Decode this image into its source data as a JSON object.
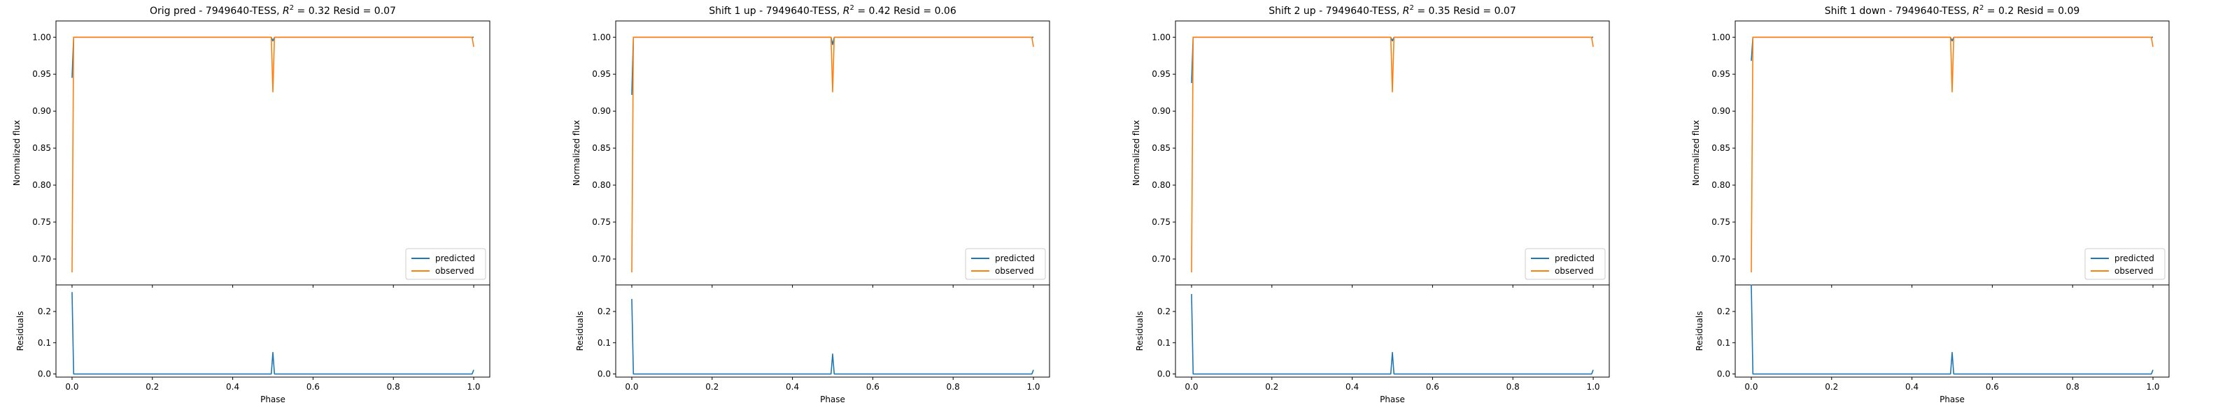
{
  "chart_data": [
    {
      "type": "line",
      "title_text": "Orig pred - 7949640-TESS, ",
      "r2": "0.32",
      "resid_text": " Resid = 0.07",
      "ylabel": "Normalized flux",
      "ylabel_res": "Residuals",
      "xlabel": "Phase",
      "xlim": [
        -0.04,
        1.04
      ],
      "ylim": [
        0.665,
        1.022
      ],
      "ylim_res": [
        -0.01,
        0.285
      ],
      "yticks": [
        "0.70",
        "0.75",
        "0.80",
        "0.85",
        "0.90",
        "0.95",
        "1.00"
      ],
      "yticks_res": [
        "0.0",
        "0.1",
        "0.2"
      ],
      "xticks": [
        "0.0",
        "0.2",
        "0.4",
        "0.6",
        "0.8",
        "1.0"
      ],
      "legend": {
        "placement": "lower-right",
        "entries": [
          "predicted",
          "observed"
        ]
      },
      "series": [
        {
          "name": "predicted",
          "color": "#1f77b4",
          "x": [
            0.0,
            0.004,
            0.01,
            0.496,
            0.5,
            0.504,
            0.99,
            0.996,
            1.0
          ],
          "y": [
            0.945,
            1.0,
            1.0,
            1.0,
            0.995,
            1.0,
            1.0,
            1.0,
            1.0
          ]
        },
        {
          "name": "observed",
          "color": "#ff7f0e",
          "x": [
            0.0,
            0.004,
            0.01,
            0.496,
            0.5,
            0.504,
            0.99,
            0.996,
            1.0
          ],
          "y": [
            0.682,
            1.0,
            1.0,
            1.0,
            0.926,
            1.0,
            1.0,
            1.0,
            0.987
          ]
        }
      ],
      "residuals": {
        "color": "#1f77b4",
        "x": [
          0.0,
          0.004,
          0.01,
          0.496,
          0.5,
          0.504,
          0.99,
          0.996,
          1.0
        ],
        "y": [
          0.262,
          0.0,
          0.0,
          0.0,
          0.069,
          0.0,
          0.0,
          0.0,
          0.013
        ]
      }
    },
    {
      "type": "line",
      "title_text": "Shift 1 up - 7949640-TESS, ",
      "r2": "0.42",
      "resid_text": " Resid = 0.06",
      "ylabel": "Normalized flux",
      "ylabel_res": "Residuals",
      "xlabel": "Phase",
      "xlim": [
        -0.04,
        1.04
      ],
      "ylim": [
        0.665,
        1.022
      ],
      "ylim_res": [
        -0.01,
        0.285
      ],
      "yticks": [
        "0.70",
        "0.75",
        "0.80",
        "0.85",
        "0.90",
        "0.95",
        "1.00"
      ],
      "yticks_res": [
        "0.0",
        "0.1",
        "0.2"
      ],
      "xticks": [
        "0.0",
        "0.2",
        "0.4",
        "0.6",
        "0.8",
        "1.0"
      ],
      "legend": {
        "placement": "lower-right",
        "entries": [
          "predicted",
          "observed"
        ]
      },
      "series": [
        {
          "name": "predicted",
          "color": "#1f77b4",
          "x": [
            0.0,
            0.004,
            0.01,
            0.496,
            0.5,
            0.504,
            0.99,
            0.996,
            1.0
          ],
          "y": [
            0.922,
            1.0,
            1.0,
            1.0,
            0.99,
            1.0,
            1.0,
            1.0,
            1.0
          ]
        },
        {
          "name": "observed",
          "color": "#ff7f0e",
          "x": [
            0.0,
            0.004,
            0.01,
            0.496,
            0.5,
            0.504,
            0.99,
            0.996,
            1.0
          ],
          "y": [
            0.682,
            1.0,
            1.0,
            1.0,
            0.926,
            1.0,
            1.0,
            1.0,
            0.987
          ]
        }
      ],
      "residuals": {
        "color": "#1f77b4",
        "x": [
          0.0,
          0.004,
          0.01,
          0.496,
          0.5,
          0.504,
          0.99,
          0.996,
          1.0
        ],
        "y": [
          0.24,
          0.0,
          0.0,
          0.0,
          0.064,
          0.0,
          0.0,
          0.0,
          0.013
        ]
      }
    },
    {
      "type": "line",
      "title_text": "Shift 2 up - 7949640-TESS, ",
      "r2": "0.35",
      "resid_text": " Resid = 0.07",
      "ylabel": "Normalized flux",
      "ylabel_res": "Residuals",
      "xlabel": "Phase",
      "xlim": [
        -0.04,
        1.04
      ],
      "ylim": [
        0.665,
        1.022
      ],
      "ylim_res": [
        -0.01,
        0.285
      ],
      "yticks": [
        "0.70",
        "0.75",
        "0.80",
        "0.85",
        "0.90",
        "0.95",
        "1.00"
      ],
      "yticks_res": [
        "0.0",
        "0.1",
        "0.2"
      ],
      "xticks": [
        "0.0",
        "0.2",
        "0.4",
        "0.6",
        "0.8",
        "1.0"
      ],
      "legend": {
        "placement": "lower-right",
        "entries": [
          "predicted",
          "observed"
        ]
      },
      "series": [
        {
          "name": "predicted",
          "color": "#1f77b4",
          "x": [
            0.0,
            0.004,
            0.01,
            0.496,
            0.5,
            0.504,
            0.99,
            0.996,
            1.0
          ],
          "y": [
            0.938,
            1.0,
            1.0,
            1.0,
            0.995,
            1.0,
            1.0,
            1.0,
            1.0
          ]
        },
        {
          "name": "observed",
          "color": "#ff7f0e",
          "x": [
            0.0,
            0.004,
            0.01,
            0.496,
            0.5,
            0.504,
            0.99,
            0.996,
            1.0
          ],
          "y": [
            0.682,
            1.0,
            1.0,
            1.0,
            0.926,
            1.0,
            1.0,
            1.0,
            0.987
          ]
        }
      ],
      "residuals": {
        "color": "#1f77b4",
        "x": [
          0.0,
          0.004,
          0.01,
          0.496,
          0.5,
          0.504,
          0.99,
          0.996,
          1.0
        ],
        "y": [
          0.256,
          0.0,
          0.0,
          0.0,
          0.069,
          0.0,
          0.0,
          0.0,
          0.013
        ]
      }
    },
    {
      "type": "line",
      "title_text": "Shift 1 down - 7949640-TESS, ",
      "r2": "0.2",
      "resid_text": " Resid = 0.09",
      "ylabel": "Normalized flux",
      "ylabel_res": "Residuals",
      "xlabel": "Phase",
      "xlim": [
        -0.04,
        1.04
      ],
      "ylim": [
        0.665,
        1.022
      ],
      "ylim_res": [
        -0.01,
        0.285
      ],
      "yticks": [
        "0.70",
        "0.75",
        "0.80",
        "0.85",
        "0.90",
        "0.95",
        "1.00"
      ],
      "yticks_res": [
        "0.0",
        "0.1",
        "0.2"
      ],
      "xticks": [
        "0.0",
        "0.2",
        "0.4",
        "0.6",
        "0.8",
        "1.0"
      ],
      "legend": {
        "placement": "lower-right",
        "entries": [
          "predicted",
          "observed"
        ]
      },
      "series": [
        {
          "name": "predicted",
          "color": "#1f77b4",
          "x": [
            0.0,
            0.004,
            0.01,
            0.496,
            0.5,
            0.504,
            0.99,
            0.996,
            1.0
          ],
          "y": [
            0.968,
            1.0,
            1.0,
            1.0,
            0.995,
            1.0,
            1.0,
            1.0,
            1.0
          ]
        },
        {
          "name": "observed",
          "color": "#ff7f0e",
          "x": [
            0.0,
            0.004,
            0.01,
            0.496,
            0.5,
            0.504,
            0.99,
            0.996,
            1.0
          ],
          "y": [
            0.682,
            1.0,
            1.0,
            1.0,
            0.926,
            1.0,
            1.0,
            1.0,
            0.987
          ]
        }
      ],
      "residuals": {
        "color": "#1f77b4",
        "x": [
          0.0,
          0.004,
          0.01,
          0.496,
          0.5,
          0.504,
          0.99,
          0.996,
          1.0
        ],
        "y": [
          0.286,
          0.0,
          0.0,
          0.0,
          0.069,
          0.0,
          0.0,
          0.0,
          0.013
        ]
      }
    }
  ]
}
